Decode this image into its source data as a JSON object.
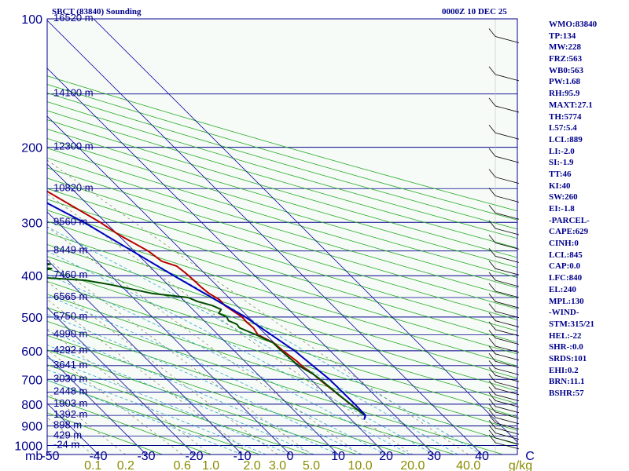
{
  "header": {
    "station_title": "SBCT (83840) Sounding",
    "valid_time": "0000Z 10 DEC 25"
  },
  "colors": {
    "background": "#f7fbf7",
    "isobar": "#00008b",
    "isotherm": "#1a1aa6",
    "dry_adiabat": "#22aa22",
    "moist_adiabat": "#2fa6c8",
    "mixing_ratio": "#7a7a55",
    "temperature": "#b80000",
    "dewpoint": "#004d00",
    "parcel": "#0000c0",
    "mixing_label": "#8b8b00",
    "text": "#00008b"
  },
  "stats": [
    "WMO:83840",
    "TP:134",
    "MW:228",
    "FRZ:563",
    "WB0:563",
    "PW:1.68",
    "RH:95.9",
    "MAXT:27.1",
    "TH:5774",
    "L57:5.4",
    "LCL:889",
    "LI:-2.0",
    "SI:-1.9",
    "TT:46",
    "KI:40",
    "SW:260",
    "EI:-1.8",
    "-PARCEL-",
    "CAPE:629",
    "CINH:0",
    "LCL:845",
    "CAP:0.0",
    "LFC:840",
    "EL:240",
    "MPL:130",
    "-WIND-",
    "STM:315/21",
    "HEL:-22",
    "SHR-:0.0",
    "SRDS:101",
    "EHI:0.2",
    "BRN:11.1",
    "BSHR:57"
  ],
  "chart_data": {
    "type": "line",
    "title": "SBCT (83840) Sounding",
    "subtitle": "0000Z 10 DEC 25",
    "xlabel": "C",
    "ylabel": "mb",
    "x_ticks": [
      -50,
      -40,
      -30,
      -20,
      -10,
      0,
      10,
      20,
      30,
      40
    ],
    "xlim": [
      -50,
      50
    ],
    "ylim": [
      1050,
      100
    ],
    "y_ticks": [
      100,
      200,
      300,
      400,
      500,
      600,
      700,
      800,
      900,
      1000
    ],
    "mixing_ratio_labels": [
      "0.1",
      "0.2",
      "0.6",
      "1.0",
      "2.0",
      "3.0",
      "5.0",
      "10.0",
      "20.0",
      "40.0",
      "g/kg"
    ],
    "mixing_ratio_values": [
      0.1,
      0.2,
      0.6,
      1.0,
      2.0,
      3.0,
      5.0,
      10.0,
      20.0,
      40.0
    ],
    "height_labels": [
      {
        "p": 100,
        "label": "16520 m"
      },
      {
        "p": 150,
        "label": "14100 m"
      },
      {
        "p": 200,
        "label": "12300 m"
      },
      {
        "p": 250,
        "label": "10820 m"
      },
      {
        "p": 300,
        "label": "9560 m"
      },
      {
        "p": 350,
        "label": "8449 m"
      },
      {
        "p": 400,
        "label": "7460 m"
      },
      {
        "p": 450,
        "label": "6565 m"
      },
      {
        "p": 500,
        "label": "5750 m"
      },
      {
        "p": 550,
        "label": "4990 m"
      },
      {
        "p": 600,
        "label": "4292 m"
      },
      {
        "p": 650,
        "label": "3641 m"
      },
      {
        "p": 700,
        "label": "3030 m"
      },
      {
        "p": 750,
        "label": "2448 m"
      },
      {
        "p": 800,
        "label": "1903 m"
      },
      {
        "p": 850,
        "label": "1392 m"
      },
      {
        "p": 900,
        "label": "898 m"
      },
      {
        "p": 950,
        "label": "429 m"
      },
      {
        "p": 1000,
        "label": "-24 m"
      }
    ],
    "series": [
      {
        "name": "Temperature",
        "points": [
          [
            850,
            23.8
          ],
          [
            830,
            23.5
          ],
          [
            800,
            23.1
          ],
          [
            770,
            22.7
          ],
          [
            740,
            22.3
          ],
          [
            710,
            21.9
          ],
          [
            680,
            21.6
          ],
          [
            655,
            21.0
          ],
          [
            635,
            20.9
          ],
          [
            600,
            20.2
          ],
          [
            575,
            19.9
          ],
          [
            550,
            18.3
          ],
          [
            530,
            18.8
          ],
          [
            515,
            18.6
          ],
          [
            500,
            18.7
          ],
          [
            490,
            18.3
          ],
          [
            470,
            17.5
          ],
          [
            455,
            17.6
          ],
          [
            440,
            16.7
          ],
          [
            425,
            16.4
          ],
          [
            410,
            16.3
          ],
          [
            395,
            16.1
          ],
          [
            380,
            15.7
          ],
          [
            370,
            13.6
          ],
          [
            350,
            12.9
          ],
          [
            340,
            12.0
          ],
          [
            320,
            10.1
          ],
          [
            300,
            8.9
          ],
          [
            250,
            3.9
          ],
          [
            200,
            -2.1
          ],
          [
            170,
            -5.8
          ],
          [
            140,
            -11.0
          ],
          [
            125,
            -12.1
          ],
          [
            120,
            -12.9
          ],
          [
            111,
            -12.3
          ],
          [
            100,
            -14.0
          ]
        ]
      },
      {
        "name": "Dewpoint",
        "points": [
          [
            850,
            23.7
          ],
          [
            820,
            23.3
          ],
          [
            790,
            23.0
          ],
          [
            760,
            22.6
          ],
          [
            730,
            22.3
          ],
          [
            700,
            22.0
          ],
          [
            680,
            21.6
          ],
          [
            650,
            20.3
          ],
          [
            620,
            20.0
          ],
          [
            595,
            19.8
          ],
          [
            575,
            19.8
          ],
          [
            560,
            18.6
          ],
          [
            550,
            17.9
          ],
          [
            540,
            16.9
          ],
          [
            530,
            15.9
          ],
          [
            520,
            16.1
          ],
          [
            510,
            15.1
          ],
          [
            500,
            15.5
          ],
          [
            490,
            14.6
          ],
          [
            480,
            15.9
          ],
          [
            470,
            14.9
          ],
          [
            460,
            12.7
          ],
          [
            450,
            11.5
          ],
          [
            440,
            4.8
          ],
          [
            420,
            -1.9
          ],
          [
            410,
            -6.4
          ],
          [
            405,
            -13.6
          ],
          [
            400,
            -14.7
          ],
          [
            398,
            -16.7
          ],
          [
            397,
            -16.4
          ],
          [
            396,
            -17.1
          ],
          [
            395,
            -16.8
          ],
          [
            393,
            -16.2
          ],
          [
            390,
            -15.5
          ],
          [
            388,
            -12.6
          ],
          [
            385,
            -10.9
          ],
          [
            382,
            -12.5
          ],
          [
            380,
            -13.0
          ],
          [
            378,
            -11.7
          ],
          [
            376,
            -10.3
          ],
          [
            370,
            -12.6
          ],
          [
            365,
            -25.3
          ],
          [
            345,
            -14.5
          ],
          [
            310,
            -11.5
          ],
          [
            300,
            -17.6
          ],
          [
            270,
            -20.8
          ],
          [
            240,
            -21.0
          ],
          [
            200,
            -24.0
          ],
          [
            160,
            -28.0
          ],
          [
            140,
            -26.2
          ],
          [
            120,
            -24.7
          ],
          [
            115,
            -24.1
          ],
          [
            100,
            -25.1
          ]
        ]
      },
      {
        "name": "Parcel",
        "points": [
          [
            870,
            22.7
          ],
          [
            850,
            23.9
          ],
          [
            800,
            24.0
          ],
          [
            700,
            23.9
          ],
          [
            600,
            22.6
          ],
          [
            500,
            19.4
          ],
          [
            400,
            13.1
          ],
          [
            300,
            5.5
          ],
          [
            250,
            -0.9
          ],
          [
            200,
            -7.0
          ],
          [
            150,
            -16.3
          ],
          [
            120,
            -21.8
          ]
        ]
      }
    ]
  }
}
